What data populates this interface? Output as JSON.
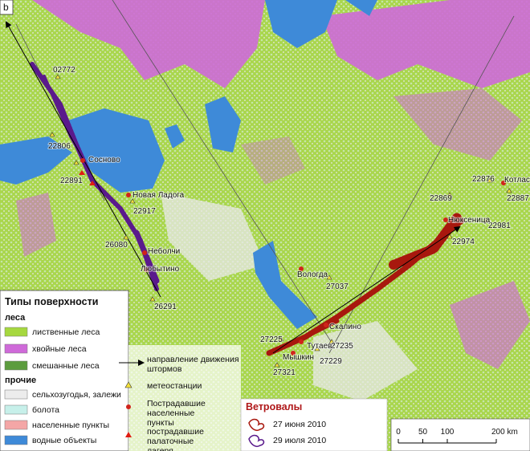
{
  "panel_label": "b",
  "stations": [
    "02772",
    "22806",
    "22891",
    "22917",
    "26080",
    "26291",
    "27037",
    "27225",
    "27235",
    "27229",
    "27321",
    "22869",
    "22876",
    "22887",
    "22981",
    "22974"
  ],
  "places": [
    "Сосново",
    "Новая Ладога",
    "Неболчи",
    "Любытино",
    "Вологда",
    "Скалино",
    "Тутаев",
    "Мышкин",
    "Нюксеница",
    "Котлас"
  ],
  "legend": {
    "title": "Типы поверхности",
    "forests_title": "леса",
    "forests": [
      "лиственные леса",
      "хвойные леса",
      "смешанные леса"
    ],
    "other_title": "прочие",
    "other": [
      "сельхозугодья, залежи",
      "болота",
      "населенные пункты",
      "водные объекты"
    ],
    "symbols": [
      "направление движения штормов",
      "метеостанции",
      "Пострадавшие населенные пункты",
      "пострадавшие палаточные лагеря"
    ]
  },
  "windfalls": {
    "title": "Ветровалы",
    "items": [
      "27 июня 2010",
      "29 июля 2010"
    ]
  },
  "scale": {
    "ticks": [
      0,
      50,
      100,
      {
        "value": 200,
        "label": "200 km"
      }
    ]
  }
}
